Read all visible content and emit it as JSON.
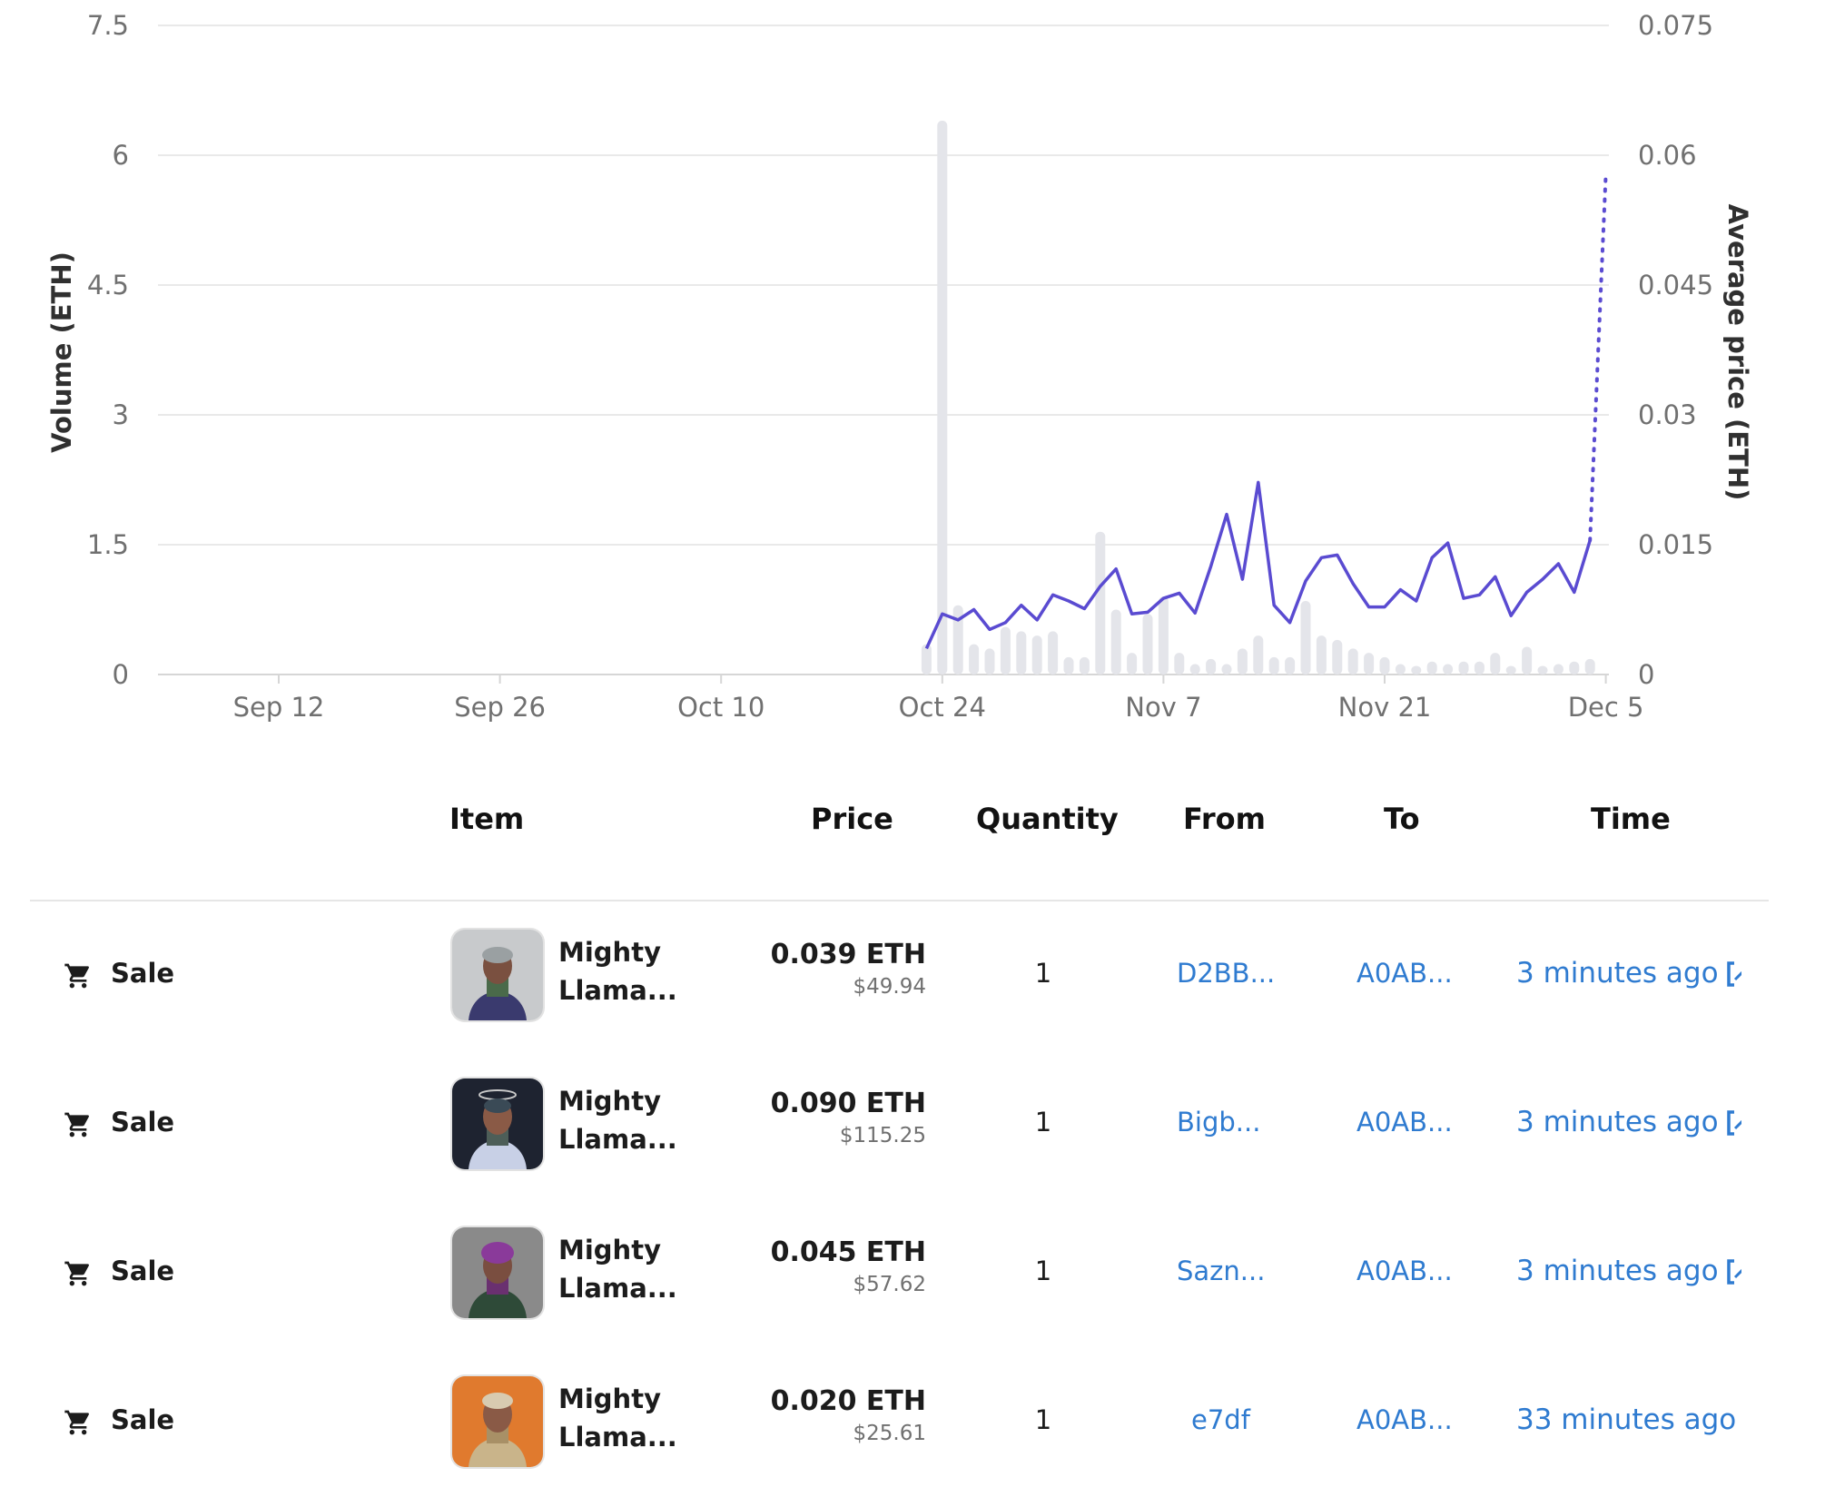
{
  "chart_data": {
    "type": "bar",
    "x_ticks": [
      "Sep 12",
      "Sep 26",
      "Oct 10",
      "Oct 24",
      "Nov 7",
      "Nov 21",
      "Dec 5"
    ],
    "left_axis": {
      "label": "Volume (ETH)",
      "ticks": [
        "0",
        "1.5",
        "3",
        "4.5",
        "6",
        "7.5"
      ],
      "range": [
        0,
        7.5
      ]
    },
    "right_axis": {
      "label": "Average price (ETH)",
      "ticks": [
        "0",
        "0.015",
        "0.03",
        "0.045",
        "0.06",
        "0.075"
      ],
      "range": [
        0,
        0.075
      ]
    },
    "grid": true,
    "series": [
      {
        "kind": "bar",
        "axis": "left",
        "color": "#e4e5ea",
        "dates": [
          "Oct 23",
          "Oct 24",
          "Oct 25",
          "Oct 26",
          "Oct 27",
          "Oct 28",
          "Oct 29",
          "Oct 30",
          "Oct 31",
          "Nov 1",
          "Nov 2",
          "Nov 3",
          "Nov 4",
          "Nov 5",
          "Nov 6",
          "Nov 7",
          "Nov 8",
          "Nov 9",
          "Nov 10",
          "Nov 11",
          "Nov 12",
          "Nov 13",
          "Nov 14",
          "Nov 15",
          "Nov 16",
          "Nov 17",
          "Nov 18",
          "Nov 19",
          "Nov 20",
          "Nov 21",
          "Nov 22",
          "Nov 23",
          "Nov 24",
          "Nov 25",
          "Nov 26",
          "Nov 27",
          "Nov 28",
          "Nov 29",
          "Nov 30",
          "Dec 1",
          "Dec 2",
          "Dec 3",
          "Dec 4"
        ],
        "values": [
          0.35,
          6.4,
          0.8,
          0.35,
          0.3,
          0.55,
          0.5,
          0.45,
          0.5,
          0.2,
          0.2,
          1.65,
          0.75,
          0.25,
          0.7,
          0.9,
          0.25,
          0.12,
          0.18,
          0.12,
          0.3,
          0.45,
          0.2,
          0.2,
          0.85,
          0.45,
          0.4,
          0.3,
          0.25,
          0.2,
          0.12,
          0.1,
          0.15,
          0.12,
          0.15,
          0.15,
          0.25,
          0.1,
          0.32,
          0.1,
          0.12,
          0.15,
          0.18
        ]
      },
      {
        "kind": "line",
        "axis": "right",
        "color": "#5a4bd1",
        "dates": [
          "Oct 23",
          "Oct 24",
          "Oct 25",
          "Oct 26",
          "Oct 27",
          "Oct 28",
          "Oct 29",
          "Oct 30",
          "Oct 31",
          "Nov 1",
          "Nov 2",
          "Nov 3",
          "Nov 4",
          "Nov 5",
          "Nov 6",
          "Nov 7",
          "Nov 8",
          "Nov 9",
          "Nov 10",
          "Nov 11",
          "Nov 12",
          "Nov 13",
          "Nov 14",
          "Nov 15",
          "Nov 16",
          "Nov 17",
          "Nov 18",
          "Nov 19",
          "Nov 20",
          "Nov 21",
          "Nov 22",
          "Nov 23",
          "Nov 24",
          "Nov 25",
          "Nov 26",
          "Nov 27",
          "Nov 28",
          "Nov 29",
          "Nov 30",
          "Dec 1",
          "Dec 2",
          "Dec 3",
          "Dec 4"
        ],
        "values": [
          0.003,
          0.007,
          0.0063,
          0.0075,
          0.0052,
          0.006,
          0.008,
          0.0063,
          0.0092,
          0.0085,
          0.0076,
          0.0102,
          0.0122,
          0.007,
          0.0072,
          0.0088,
          0.0094,
          0.0071,
          0.0125,
          0.0185,
          0.011,
          0.0222,
          0.008,
          0.006,
          0.0108,
          0.0135,
          0.0138,
          0.0105,
          0.0078,
          0.0078,
          0.0098,
          0.0085,
          0.0135,
          0.0152,
          0.0088,
          0.0092,
          0.0113,
          0.0068,
          0.0095,
          0.011,
          0.0128,
          0.0095,
          0.0155
        ]
      },
      {
        "kind": "line",
        "style": "dotted",
        "axis": "right",
        "color": "#5a4bd1",
        "dates": [
          "Dec 4",
          "Dec 5"
        ],
        "values": [
          0.0155,
          0.0578
        ]
      }
    ]
  },
  "table": {
    "headers": {
      "item": "Item",
      "price": "Price",
      "quantity": "Quantity",
      "from": "From",
      "to": "To",
      "time": "Time"
    },
    "rows": [
      {
        "event": "Sale",
        "item_line1": "Mighty",
        "item_line2": "Llama...",
        "price": "0.039 ETH",
        "usd": "$49.94",
        "quantity": "1",
        "from": "D2BB...",
        "to": "A0AB...",
        "time": "3 minutes ago"
      },
      {
        "event": "Sale",
        "item_line1": "Mighty",
        "item_line2": "Llama...",
        "price": "0.090 ETH",
        "usd": "$115.25",
        "quantity": "1",
        "from": "Bigb...",
        "to": "A0AB...",
        "time": "3 minutes ago"
      },
      {
        "event": "Sale",
        "item_line1": "Mighty",
        "item_line2": "Llama...",
        "price": "0.045 ETH",
        "usd": "$57.62",
        "quantity": "1",
        "from": "Sazn...",
        "to": "A0AB...",
        "time": "3 minutes ago"
      },
      {
        "event": "Sale",
        "item_line1": "Mighty",
        "item_line2": "Llama...",
        "price": "0.020 ETH",
        "usd": "$25.61",
        "quantity": "1",
        "from": "e7df",
        "to": "A0AB...",
        "time": "33 minutes ago"
      }
    ],
    "icons": {
      "event": "shopping-cart-icon",
      "link": "external-link-icon"
    },
    "colors": {
      "link": "#2f7bd0"
    }
  }
}
